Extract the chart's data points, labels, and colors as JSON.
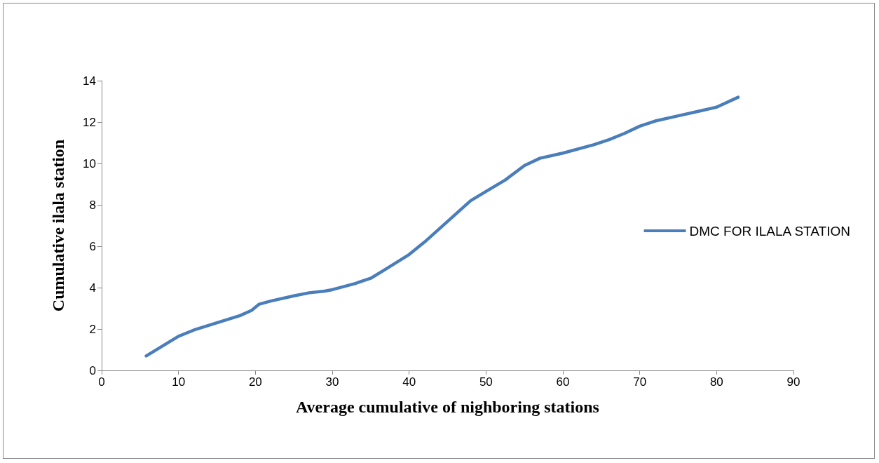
{
  "chart_data": {
    "type": "line",
    "xlabel": "Average cumulative of nighboring stations",
    "ylabel": "Cumulative ilala station",
    "xlim": [
      0,
      90
    ],
    "xticks": [
      0,
      10,
      20,
      30,
      40,
      50,
      60,
      70,
      80,
      90
    ],
    "ylim": [
      0,
      14
    ],
    "yticks": [
      0,
      2,
      4,
      6,
      8,
      10,
      12,
      14
    ],
    "grid": false,
    "legend": "right",
    "marker": "none",
    "line_style": "solid",
    "series": [
      {
        "name": "DMC FOR ILALA STATION",
        "color": "#4a7ebb",
        "x": [
          5.8,
          10,
          12,
          15,
          18,
          19.5,
          20.5,
          22,
          25,
          27,
          29,
          30,
          33,
          35,
          37,
          40,
          42,
          45,
          48,
          50,
          52.5,
          55,
          57,
          60,
          64,
          66,
          68,
          70,
          72,
          75,
          78,
          80,
          82.8
        ],
        "values": [
          0.7,
          1.65,
          1.95,
          2.3,
          2.65,
          2.9,
          3.2,
          3.35,
          3.6,
          3.75,
          3.83,
          3.9,
          4.2,
          4.45,
          4.9,
          5.6,
          6.2,
          7.2,
          8.2,
          8.65,
          9.2,
          9.9,
          10.25,
          10.5,
          10.9,
          11.15,
          11.45,
          11.8,
          12.05,
          12.3,
          12.55,
          12.72,
          13.2
        ]
      }
    ]
  }
}
